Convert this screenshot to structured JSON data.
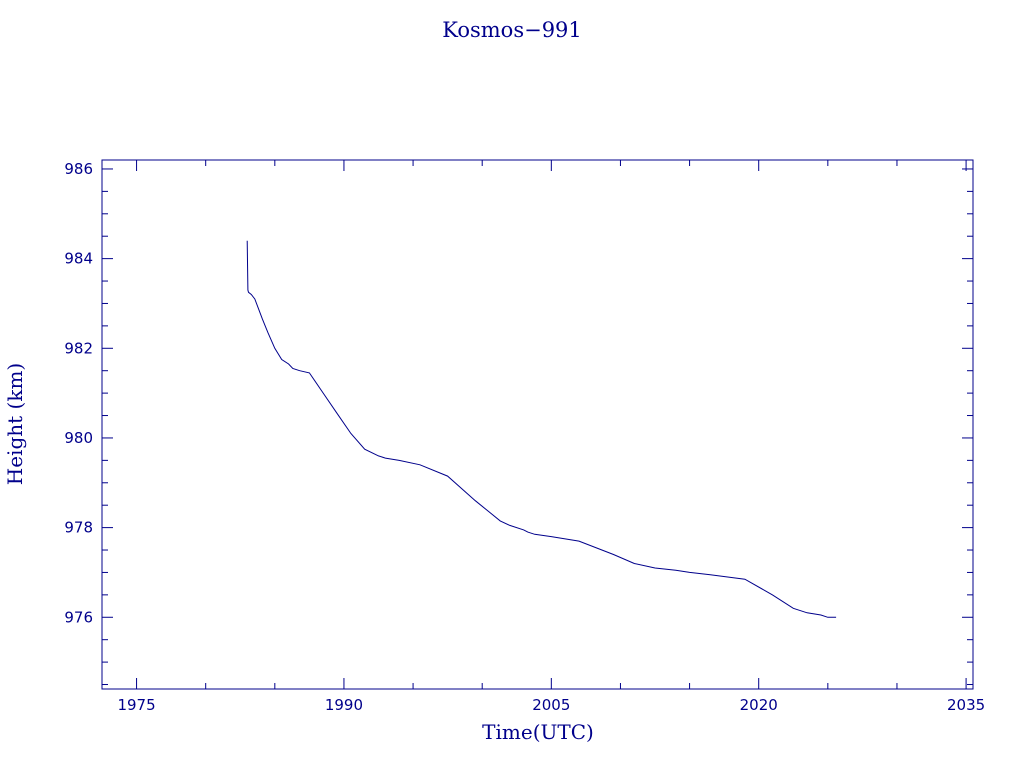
{
  "colors": {
    "ink": "#00008b",
    "background": "#ffffff"
  },
  "chart_data": {
    "type": "line",
    "title": "Kosmos−991",
    "xlabel": "Time(UTC)",
    "ylabel": "Height (km)",
    "xlim": [
      1972.5,
      2035.5
    ],
    "ylim": [
      974.4,
      986.2
    ],
    "xticks": [
      1975,
      1990,
      2005,
      2020,
      2035
    ],
    "xtick_labels": [
      "1975",
      "1990",
      "2005",
      "2020",
      "2035"
    ],
    "yticks": [
      976,
      978,
      980,
      982,
      984,
      986
    ],
    "ytick_labels": [
      "976",
      "978",
      "980",
      "982",
      "984",
      "986"
    ],
    "grid": false,
    "legend": "none",
    "series": [
      {
        "x": [
          1983.0,
          1983.05,
          1983.1,
          1983.3,
          1983.55,
          1983.8,
          1984.1,
          1984.5,
          1985.0,
          1985.5,
          1986.0,
          1986.3,
          1986.8,
          1987.5,
          1988.5,
          1989.5,
          1990.5,
          1991.5,
          1992.5,
          1993.0,
          1994.0,
          1995.5,
          1997.5,
          1999.5,
          2000.5,
          2001.3,
          2002.0,
          2003.0,
          2003.3,
          2003.8,
          2005.0,
          2007.0,
          2009.5,
          2011.0,
          2012.5,
          2014.0,
          2015.0,
          2016.5,
          2019.0,
          2021.0,
          2022.5,
          2023.5,
          2024.5,
          2025.0,
          2025.6
        ],
        "y": [
          984.4,
          983.3,
          983.25,
          983.2,
          983.1,
          982.9,
          982.65,
          982.35,
          982.0,
          981.75,
          981.65,
          981.55,
          981.5,
          981.45,
          981.0,
          980.55,
          980.1,
          979.75,
          979.6,
          979.55,
          979.5,
          979.4,
          979.15,
          978.6,
          978.35,
          978.15,
          978.05,
          977.95,
          977.9,
          977.85,
          977.8,
          977.7,
          977.4,
          977.2,
          977.1,
          977.05,
          977.0,
          976.95,
          976.85,
          976.5,
          976.2,
          976.1,
          976.05,
          976.0,
          976.0
        ]
      }
    ]
  }
}
